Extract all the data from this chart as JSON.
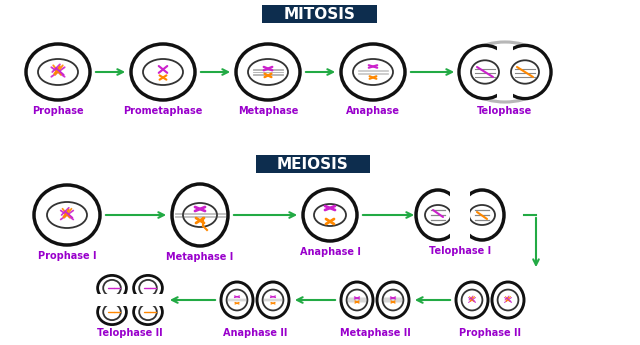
{
  "bg_color": "#ffffff",
  "title_mitosis": "MITOSIS",
  "title_meiosis": "MEIOSIS",
  "title_bg": "#0d2d4e",
  "title_color": "#ffffff",
  "title_fontsize": 11,
  "label_color": "#9900cc",
  "label_fontsize": 7.0,
  "arrow_color": "#22aa44",
  "cell_outline": "#111111",
  "cell_lw": 2.5,
  "inner_lw": 1.3,
  "chrom_purple": "#cc22cc",
  "chrom_orange": "#ff8800",
  "spindle_color": "#555555",
  "fig_width": 6.4,
  "fig_height": 3.45,
  "dpi": 100,
  "mitosis_labels": [
    "Prophase",
    "Prometaphase",
    "Metaphase",
    "Anaphase",
    "Telophase"
  ],
  "meiosis_row1_labels": [
    "Prophase I",
    "Metaphase I",
    "Anaphase I",
    "Telophase I"
  ],
  "meiosis_row2_labels": [
    "Telophase II",
    "Anaphase II",
    "Metaphase II",
    "Prophase II"
  ]
}
